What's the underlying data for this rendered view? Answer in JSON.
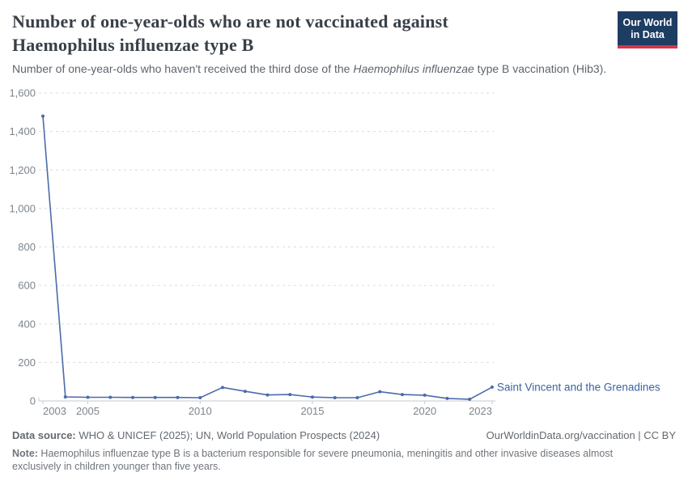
{
  "header": {
    "title_line1": "Number of one-year-olds who are not vaccinated against",
    "title_line2": "Haemophilus influenzae type B",
    "subtitle_prefix": "Number of one-year-olds who haven't received the third dose of the ",
    "subtitle_italic": "Haemophilus influenzae",
    "subtitle_suffix": " type B vaccination (Hib3).",
    "logo_line1": "Our World",
    "logo_line2": "in Data",
    "logo_bg": "#1d3d63",
    "logo_accent": "#d0384a"
  },
  "chart_data": {
    "type": "line",
    "title": "Number of one-year-olds who are not vaccinated against Haemophilus influenzae type B",
    "subtitle": "Number of one-year-olds who haven't received the third dose of the Haemophilus influenzae type B vaccination (Hib3).",
    "x": [
      2003,
      2004,
      2005,
      2006,
      2007,
      2008,
      2009,
      2010,
      2011,
      2012,
      2013,
      2014,
      2015,
      2016,
      2017,
      2018,
      2019,
      2020,
      2021,
      2022,
      2023
    ],
    "series": [
      {
        "name": "Saint Vincent and the Grenadines",
        "color": "#4c6ba9",
        "values": [
          1480,
          21,
          19,
          19,
          18,
          18,
          18,
          17,
          70,
          50,
          31,
          33,
          20,
          17,
          17,
          48,
          33,
          30,
          13,
          9,
          72
        ]
      }
    ],
    "xlabel": "",
    "ylabel": "",
    "ylim": [
      0,
      1600
    ],
    "yticks": [
      0,
      200,
      400,
      600,
      800,
      1000,
      1200,
      1400,
      1600
    ],
    "xticks": [
      2003,
      2005,
      2010,
      2015,
      2020,
      2023
    ],
    "grid": "horizontal-dashed",
    "grid_color": "#d8dbde",
    "axis_color": "#c6cbd0",
    "tick_label_color": "#7d858d",
    "entity_label": "Saint Vincent and the Grenadines",
    "entity_label_color": "#3d64a3",
    "legend_position": "end-of-line"
  },
  "footer": {
    "source_label": "Data source:",
    "source_text": " WHO & UNICEF (2025); UN, World Population Prospects (2024)",
    "rights": "OurWorldinData.org/vaccination | CC BY",
    "note_label": "Note:",
    "note_text": " Haemophilus influenzae type B is a bacterium responsible for severe pneumonia, meningitis and other invasive diseases almost exclusively in children younger than five years."
  }
}
